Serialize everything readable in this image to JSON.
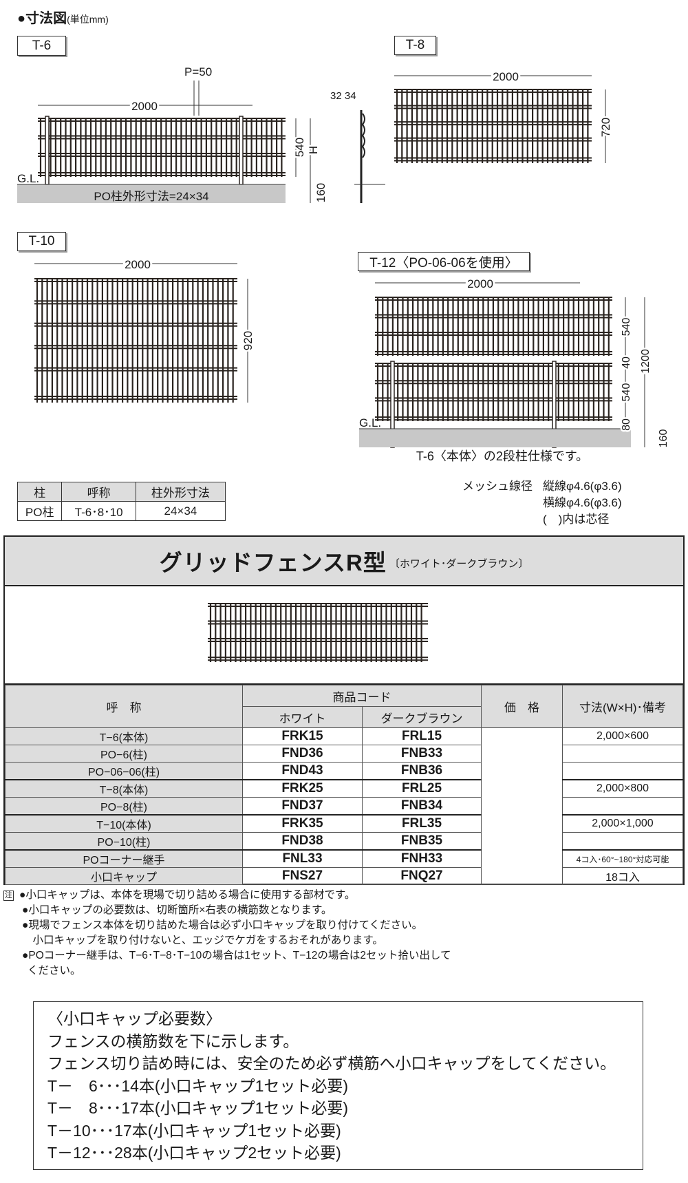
{
  "heading": {
    "title": "●寸法図",
    "unit": "(単位mm)"
  },
  "diagrams": {
    "t6": {
      "label": "T-6",
      "width": "2000",
      "pitch": "P=50",
      "panel_h": "540",
      "h": "H",
      "embed": "160",
      "gl": "G.L.",
      "side_dims": "32 34",
      "post_note": "PO柱外形寸法=24×34"
    },
    "t8": {
      "label": "T-8",
      "width": "2000",
      "height": "720"
    },
    "t10": {
      "label": "T-10",
      "width": "2000",
      "height": "920"
    },
    "t12": {
      "label": "T-12〈PO-06-06を使用〉",
      "width": "2000",
      "top_h": "540",
      "gap": "40",
      "total": "1200",
      "bottom_h": "540",
      "clear": "80",
      "embed": "160",
      "gl": "G.L.",
      "caption": "T-6〈本体〉の2段柱仕様です。"
    }
  },
  "mesh_spec": {
    "label": "メッシュ線径",
    "vertical": "縦線φ4.6(φ3.6)",
    "horizontal": "横線φ4.6(φ3.6)",
    "note": "(　)内は芯径"
  },
  "post_table": {
    "headers": [
      "柱",
      "呼称",
      "柱外形寸法"
    ],
    "row": [
      "PO柱",
      "T-6･8･10",
      "24×34"
    ]
  },
  "product": {
    "title": "グリッドフェンスR型",
    "colors_note": "〔ホワイト･ダークブラウン〕",
    "headers": {
      "name": "呼　称",
      "code": "商品コード",
      "white": "ホワイト",
      "brown": "ダークブラウン",
      "price": "価　格",
      "size": "寸法(W×H)･備考"
    },
    "rows": [
      {
        "name": "T−6(本体)",
        "white": "FRK15",
        "brown": "FRL15",
        "size": "2,000×600"
      },
      {
        "name": "PO−6(柱)",
        "white": "FND36",
        "brown": "FNB33",
        "size": ""
      },
      {
        "name": "PO−06−06(柱)",
        "white": "FND43",
        "brown": "FNB36",
        "size": ""
      },
      {
        "name": "T−8(本体)",
        "white": "FRK25",
        "brown": "FRL25",
        "size": "2,000×800"
      },
      {
        "name": "PO−8(柱)",
        "white": "FND37",
        "brown": "FNB34",
        "size": ""
      },
      {
        "name": "T−10(本体)",
        "white": "FRK35",
        "brown": "FRL35",
        "size": "2,000×1,000"
      },
      {
        "name": "PO−10(柱)",
        "white": "FND38",
        "brown": "FNB35",
        "size": ""
      },
      {
        "name": "POコーナー継手",
        "white": "FNL33",
        "brown": "FNH33",
        "size": "4コ入･60°~180°対応可能"
      },
      {
        "name": "小口キャップ",
        "white": "FNS27",
        "brown": "FNQ27",
        "size": "18コ入"
      }
    ]
  },
  "notes": {
    "mark": "注",
    "items": [
      "●小口キャップは、本体を現場で切り詰める場合に使用する部材です。",
      "●小口キャップの必要数は、切断箇所×右表の横筋数となります。",
      "●現場でフェンス本体を切り詰めた場合は必ず小口キャップを取り付けてください。",
      "　小口キャップを取り付けないと、エッジでケガをするおそれがあります。",
      "●POコーナー継手は、T−6･T−8･T−10の場合は1セット、T−12の場合は2セット拾い出して",
      "ください。"
    ]
  },
  "cap_requirements": {
    "title": "〈小口キャップ必要数〉",
    "lines": [
      "フェンスの横筋数を下に示します。",
      "フェンス切り詰め時には、安全のため必ず横筋へ小口キャップをしてください。",
      "T－　6･･･14本(小口キャップ1セット必要)",
      "T－　8･･･17本(小口キャップ1セット必要)",
      "T－10･･･17本(小口キャップ1セット必要)",
      "T－12･･･28本(小口キャップ2セット必要)"
    ]
  }
}
